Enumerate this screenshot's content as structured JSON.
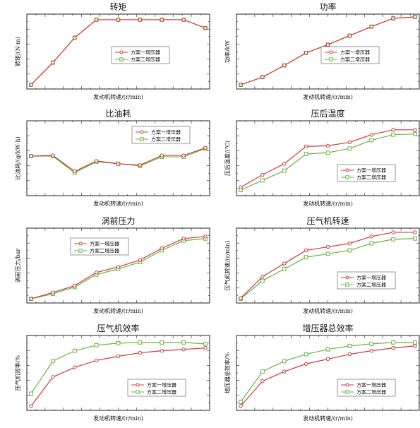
{
  "colors": {
    "series1": "#d03a3a",
    "series2": "#6cb33f",
    "axis": "#222222"
  },
  "chart_data": [
    {
      "type": "line",
      "title": "转矩",
      "xlabel": "发动机转速/(r/min)",
      "ylabel": "转矩/(N·m)",
      "x": [
        0,
        1,
        2,
        3,
        4,
        5,
        6,
        7,
        8
      ],
      "ylim": [
        0,
        100
      ],
      "legend_position": "center-right",
      "series": [
        {
          "name": "方案一增压器",
          "values": [
            2,
            34,
            70,
            96,
            96,
            96,
            96,
            96,
            84
          ]
        },
        {
          "name": "方案二增压器",
          "values": [
            2,
            34,
            70,
            96,
            96,
            96,
            96,
            96,
            84
          ]
        }
      ]
    },
    {
      "type": "line",
      "title": "功率",
      "xlabel": "发动机转速/(r/min)",
      "ylabel": "功率/kW",
      "x": [
        0,
        1,
        2,
        3,
        4,
        5,
        6,
        7,
        8
      ],
      "ylim": [
        0,
        100
      ],
      "legend_position": "center-right",
      "series": [
        {
          "name": "方案一增压器",
          "values": [
            2,
            13,
            30,
            48,
            60,
            73,
            86,
            98,
            100
          ]
        },
        {
          "name": "方案二增压器",
          "values": [
            2,
            13,
            30,
            48,
            60,
            73,
            86,
            98,
            100
          ]
        }
      ]
    },
    {
      "type": "line",
      "title": "比油耗",
      "xlabel": "发动机转速/(r/min)",
      "ylabel": "比油耗/(g/kW·h)",
      "x": [
        0,
        1,
        2,
        3,
        4,
        5,
        6,
        7,
        8
      ],
      "ylim": [
        0,
        100
      ],
      "legend_position": "top-right",
      "series": [
        {
          "name": "方案一增压器",
          "values": [
            53,
            54,
            31,
            46,
            42,
            40,
            54,
            54,
            65
          ]
        },
        {
          "name": "方案二增压器",
          "values": [
            53,
            53,
            29,
            45,
            42,
            39,
            52,
            52,
            64
          ]
        }
      ]
    },
    {
      "type": "line",
      "title": "压后温度",
      "xlabel": "发动机转速/(r/min)",
      "ylabel": "压后温度/(℃)",
      "x": [
        0,
        1,
        2,
        3,
        4,
        5,
        6,
        7,
        8
      ],
      "ylim": [
        0,
        100
      ],
      "legend_position": "bottom-right",
      "series": [
        {
          "name": "方案一增压器",
          "values": [
            8,
            26,
            42,
            67,
            68,
            73,
            84,
            91,
            91
          ]
        },
        {
          "name": "方案二增压器",
          "values": [
            4,
            18,
            32,
            56,
            58,
            64,
            76,
            84,
            85
          ]
        }
      ]
    },
    {
      "type": "line",
      "title": "涡前压力",
      "xlabel": "发动机转速/(r/min)",
      "ylabel": "涡前压力/bar",
      "x": [
        0,
        1,
        2,
        3,
        4,
        5,
        6,
        7,
        8
      ],
      "ylim": [
        0,
        100
      ],
      "legend_position": "top-left",
      "series": [
        {
          "name": "方案一增压器",
          "values": [
            2,
            11,
            21,
            40,
            48,
            58,
            75,
            89,
            92
          ]
        },
        {
          "name": "方案二增压器",
          "values": [
            2,
            9,
            19,
            37,
            45,
            55,
            72,
            86,
            89
          ]
        }
      ]
    },
    {
      "type": "line",
      "title": "压气机转速",
      "xlabel": "发动机转速/(r/min)",
      "ylabel": "压气机转速/(r/min)",
      "x": [
        0,
        1,
        2,
        3,
        4,
        5,
        6,
        7,
        8
      ],
      "ylim": [
        0,
        100
      ],
      "legend_position": "bottom-right",
      "series": [
        {
          "name": "方案一增压器",
          "values": [
            3,
            34,
            53,
            72,
            77,
            82,
            92,
            98,
            98
          ]
        },
        {
          "name": "方案二增压器",
          "values": [
            2,
            28,
            45,
            62,
            67,
            72,
            82,
            88,
            89
          ]
        }
      ]
    },
    {
      "type": "line",
      "title": "压气机效率",
      "xlabel": "发动机转速/(r/min)",
      "ylabel": "压气机效率/%",
      "x": [
        0,
        1,
        2,
        3,
        4,
        5,
        6,
        7,
        8
      ],
      "ylim": [
        0,
        100
      ],
      "legend_position": "bottom-right",
      "series": [
        {
          "name": "方案一增压器",
          "values": [
            2,
            44,
            58,
            68,
            74,
            79,
            82,
            84,
            86
          ]
        },
        {
          "name": "方案二增压器",
          "values": [
            20,
            67,
            82,
            90,
            93,
            94,
            94,
            94,
            92
          ]
        }
      ]
    },
    {
      "type": "line",
      "title": "增压器总效率",
      "xlabel": "发动机转速/(r/min)",
      "ylabel": "增压器总效率/%",
      "x": [
        0,
        1,
        2,
        3,
        4,
        5,
        6,
        7,
        8
      ],
      "ylim": [
        0,
        100
      ],
      "legend_position": "bottom-right",
      "series": [
        {
          "name": "方案一增压器",
          "values": [
            2,
            38,
            52,
            63,
            70,
            77,
            82,
            86,
            89
          ]
        },
        {
          "name": "方案二增压器",
          "values": [
            8,
            52,
            67,
            77,
            84,
            89,
            92,
            94,
            94
          ]
        }
      ]
    }
  ]
}
